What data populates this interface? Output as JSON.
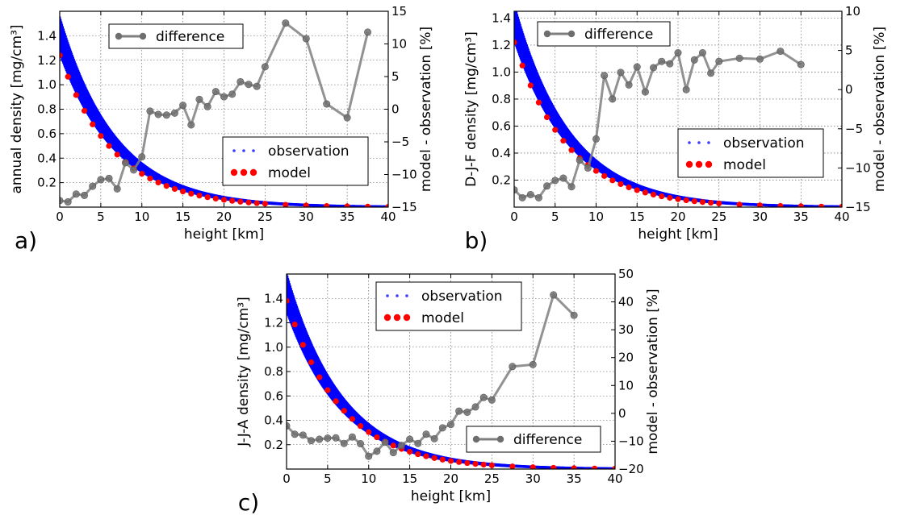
{
  "chart_data": [
    {
      "type": "scatter",
      "panel_label": "a)",
      "xlabel": "height [km]",
      "ylabel": "annual density [mg/cm³]",
      "y2label": "model - observation [%]",
      "xlim": [
        0,
        40
      ],
      "ylim": [
        0,
        1.6
      ],
      "y2lim": [
        -15,
        15
      ],
      "xticks": [
        "0",
        "5",
        "10",
        "15",
        "20",
        "25",
        "30",
        "35",
        "40"
      ],
      "yticks": [
        "0.2",
        "0.4",
        "0.6",
        "0.8",
        "1.0",
        "1.2",
        "1.4"
      ],
      "y2ticks": [
        "−15",
        "−10",
        "−5",
        "0",
        "5",
        "10",
        "15"
      ],
      "grid": true,
      "legend_series": {
        "observation": "observation",
        "model": "model"
      },
      "legend_difference": "difference",
      "obs_scale_height": 6.8,
      "obs_surface_range": [
        1.26,
        1.55
      ],
      "model_surface": 1.24,
      "model_scale_height": 6.6,
      "series": [
        {
          "name": "observation",
          "color": "#0000ff"
        },
        {
          "name": "model",
          "color": "#ff0000"
        },
        {
          "name": "difference",
          "axis": "right",
          "color": "#808080",
          "x": [
            0,
            1,
            2,
            3,
            4,
            5,
            6,
            7,
            8,
            9,
            10,
            11,
            12,
            13,
            14,
            15,
            16,
            17,
            18,
            19,
            20,
            21,
            22,
            23,
            24,
            25,
            27.5,
            30,
            32.5,
            35,
            37.5
          ],
          "y": [
            -14,
            -14.2,
            -13,
            -13.2,
            -11.8,
            -10.8,
            -10.6,
            -12.2,
            -8.2,
            -9.3,
            -7.3,
            -0.3,
            -0.8,
            -0.9,
            -0.6,
            0.6,
            -2.4,
            1.5,
            0.4,
            2.7,
            1.9,
            2.3,
            4.2,
            3.8,
            3.5,
            6.5,
            13.2,
            10.8,
            0.8,
            -1.3,
            11.8
          ]
        }
      ]
    },
    {
      "type": "scatter",
      "panel_label": "b)",
      "xlabel": "height [km]",
      "ylabel": "D-J-F density [mg/cm³]",
      "y2label": "model - observation [%]",
      "xlim": [
        0,
        40
      ],
      "ylim": [
        0,
        1.45
      ],
      "y2lim": [
        -15,
        10
      ],
      "xticks": [
        "0",
        "5",
        "10",
        "15",
        "20",
        "25",
        "30",
        "35",
        "40"
      ],
      "yticks": [
        "0.2",
        "0.4",
        "0.6",
        "0.8",
        "1.0",
        "1.2",
        "1.4"
      ],
      "y2ticks": [
        "−15",
        "−10",
        "−5",
        "0",
        "5",
        "10"
      ],
      "grid": true,
      "legend_series": {
        "observation": "observation",
        "model": "model"
      },
      "legend_difference": "difference",
      "obs_scale_height": 6.8,
      "obs_surface_range": [
        1.24,
        1.5
      ],
      "model_surface": 1.22,
      "model_scale_height": 6.6,
      "series": [
        {
          "name": "observation",
          "color": "#0000ff"
        },
        {
          "name": "model",
          "color": "#ff0000"
        },
        {
          "name": "difference",
          "axis": "right",
          "color": "#808080",
          "x": [
            0,
            1,
            2,
            3,
            4,
            5,
            6,
            7,
            8,
            9,
            10,
            11,
            12,
            13,
            14,
            15,
            16,
            17,
            18,
            19,
            20,
            21,
            22,
            23,
            24,
            25,
            27.5,
            30,
            32.5,
            35
          ],
          "y": [
            -12.8,
            -13.8,
            -13.4,
            -13.8,
            -12.3,
            -11.6,
            -11.3,
            -12.4,
            -9,
            -10,
            -6.3,
            1.8,
            -1.2,
            2.2,
            0.6,
            2.9,
            -0.3,
            2.8,
            3.6,
            3.3,
            4.7,
            0,
            3.8,
            4.7,
            2.1,
            3.6,
            4,
            3.9,
            4.9,
            3.2
          ]
        }
      ]
    },
    {
      "type": "scatter",
      "panel_label": "c)",
      "xlabel": "height [km]",
      "ylabel": "J-J-A density [mg/cm³]",
      "y2label": "model - observation [%]",
      "xlim": [
        0,
        40
      ],
      "ylim": [
        0,
        1.6
      ],
      "y2lim": [
        -20,
        50
      ],
      "xticks": [
        "0",
        "5",
        "10",
        "15",
        "20",
        "25",
        "30",
        "35",
        "40"
      ],
      "yticks": [
        "0.2",
        "0.4",
        "0.6",
        "0.8",
        "1.0",
        "1.2",
        "1.4"
      ],
      "y2ticks": [
        "−20",
        "−10",
        "0",
        "10",
        "20",
        "30",
        "40",
        "50"
      ],
      "grid": true,
      "legend_series": {
        "observation": "observation",
        "model": "model"
      },
      "legend_difference": "difference",
      "obs_scale_height": 6.8,
      "obs_surface_range": [
        1.3,
        1.6
      ],
      "model_surface": 1.38,
      "model_scale_height": 6.6,
      "series": [
        {
          "name": "observation",
          "color": "#0000ff"
        },
        {
          "name": "model",
          "color": "#ff0000"
        },
        {
          "name": "difference",
          "axis": "right",
          "color": "#808080",
          "x": [
            0,
            1,
            2,
            3,
            4,
            5,
            6,
            7,
            8,
            9,
            10,
            11,
            12,
            13,
            14,
            15,
            16,
            17,
            18,
            19,
            20,
            21,
            22,
            23,
            24,
            25,
            27.5,
            30,
            32.5,
            35
          ],
          "y": [
            -4.5,
            -7.5,
            -7.8,
            -9.8,
            -9.3,
            -8.9,
            -8.8,
            -10.8,
            -8.5,
            -10.9,
            -15.4,
            -13.6,
            -10.4,
            -14.1,
            -11.5,
            -9.3,
            -10.8,
            -7.5,
            -9.1,
            -5.2,
            -4,
            0.8,
            0.4,
            2.3,
            5.7,
            4.8,
            16.8,
            17.5,
            42.5,
            35.2
          ]
        }
      ]
    }
  ]
}
